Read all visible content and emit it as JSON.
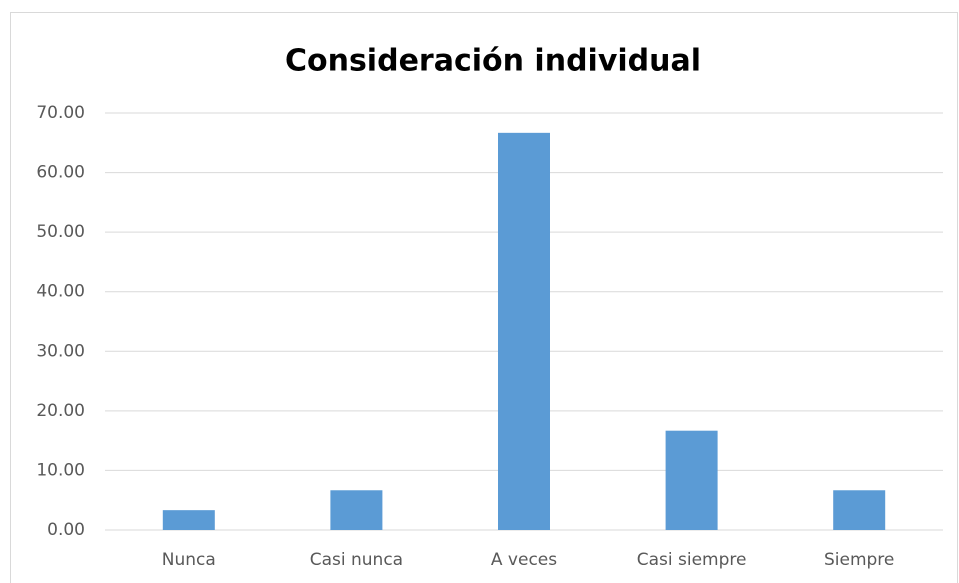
{
  "chart_data": {
    "type": "bar",
    "title": "Consideración individual",
    "categories": [
      "Nunca",
      "Casi nunca",
      "A veces",
      "Casi siempre",
      "Siempre"
    ],
    "values": [
      3.33,
      6.67,
      66.67,
      16.67,
      6.67
    ],
    "color": "#5b9bd5",
    "ylim": [
      0,
      70
    ],
    "yticks": [
      {
        "value": 0,
        "label": "0.00"
      },
      {
        "value": 10,
        "label": "10.00"
      },
      {
        "value": 20,
        "label": "20.00"
      },
      {
        "value": 30,
        "label": "30.00"
      },
      {
        "value": 40,
        "label": "40.00"
      },
      {
        "value": 50,
        "label": "50.00"
      },
      {
        "value": 60,
        "label": "60.00"
      },
      {
        "value": 70,
        "label": "70.00"
      }
    ],
    "grid": true
  }
}
